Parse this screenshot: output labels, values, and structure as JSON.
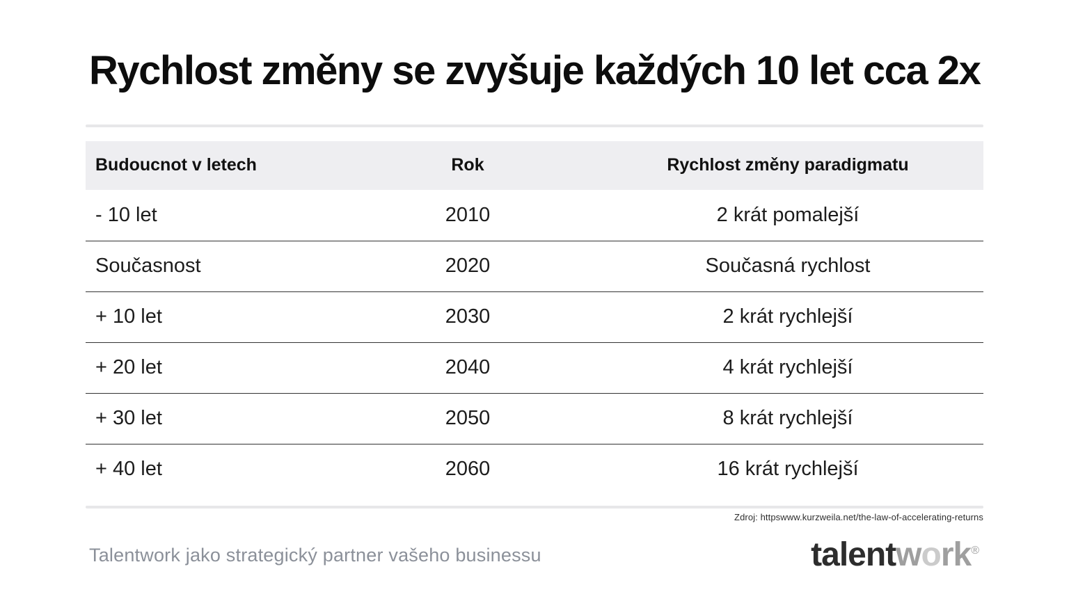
{
  "title": "Rychlost změny se zvyšuje každých 10 let cca 2x",
  "table": {
    "headers": [
      "Budoucnot v letech",
      "Rok",
      "Rychlost změny paradigmatu"
    ],
    "rows": [
      [
        "- 10 let",
        "2010",
        "2 krát pomalejší"
      ],
      [
        "Současnost",
        "2020",
        "Současná rychlost"
      ],
      [
        "+ 10 let",
        "2030",
        "2 krát rychlejší"
      ],
      [
        "+ 20 let",
        "2040",
        "4 krát rychlejší"
      ],
      [
        "+ 30 let",
        "2050",
        "8 krát rychlejší"
      ],
      [
        "+ 40 let",
        "2060",
        "16 krát rychlejší"
      ]
    ]
  },
  "source_note": "Zdroj: httpswww.kurzweila.net/the-law-of-accelerating-returns",
  "footer": {
    "tagline": "Talentwork jako strategický partner vašeho businessu",
    "logo": {
      "p1": "talent",
      "p2": "w",
      "p3": "o",
      "p4": "rk",
      "reg": "®"
    }
  },
  "colors": {
    "header_row_bg": "#eeeef1",
    "row_divider": "#333333",
    "outer_rule": "#e7e7e9",
    "title_text": "#0d0d0d",
    "tagline_text": "#8b9099",
    "logo_dark": "#2d2d2d",
    "logo_gray": "#9f9f9f"
  }
}
